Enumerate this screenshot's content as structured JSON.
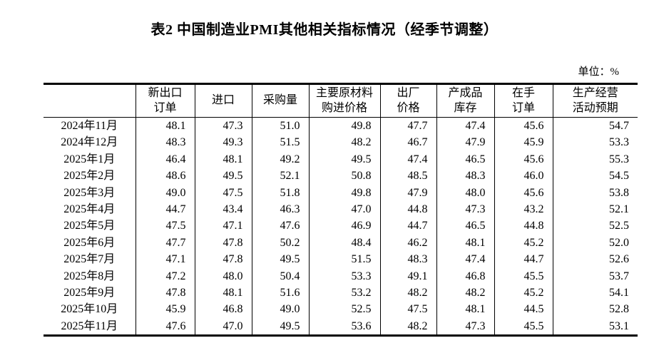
{
  "title": "表2 中国制造业PMI其他相关指标情况（经季节调整）",
  "unit_label": "单位：%",
  "colors": {
    "text": "#000000",
    "border": "#000000",
    "background": "#ffffff"
  },
  "table": {
    "columns": [
      "",
      "新出口\n订单",
      "进口",
      "采购量",
      "主要原材料\n购进价格",
      "出厂\n价格",
      "产成品\n库存",
      "在手\n订单",
      "生产经营\n活动预期"
    ],
    "rows": [
      {
        "label": "2024年11月",
        "values": [
          "48.1",
          "47.3",
          "51.0",
          "49.8",
          "47.7",
          "47.4",
          "45.6",
          "54.7"
        ]
      },
      {
        "label": "2024年12月",
        "values": [
          "48.3",
          "49.3",
          "51.5",
          "48.2",
          "46.7",
          "47.9",
          "45.9",
          "53.3"
        ]
      },
      {
        "label": "2025年1月",
        "values": [
          "46.4",
          "48.1",
          "49.2",
          "49.5",
          "47.4",
          "46.5",
          "45.6",
          "55.3"
        ]
      },
      {
        "label": "2025年2月",
        "values": [
          "48.6",
          "49.5",
          "52.1",
          "50.8",
          "48.5",
          "48.3",
          "46.0",
          "54.5"
        ]
      },
      {
        "label": "2025年3月",
        "values": [
          "49.0",
          "47.5",
          "51.8",
          "49.8",
          "47.9",
          "48.0",
          "45.6",
          "53.8"
        ]
      },
      {
        "label": "2025年4月",
        "values": [
          "44.7",
          "43.4",
          "46.3",
          "47.0",
          "44.8",
          "47.3",
          "43.2",
          "52.1"
        ]
      },
      {
        "label": "2025年5月",
        "values": [
          "47.5",
          "47.1",
          "47.6",
          "46.9",
          "44.7",
          "46.5",
          "44.8",
          "52.5"
        ]
      },
      {
        "label": "2025年6月",
        "values": [
          "47.7",
          "47.8",
          "50.2",
          "48.4",
          "46.2",
          "48.1",
          "45.2",
          "52.0"
        ]
      },
      {
        "label": "2025年7月",
        "values": [
          "47.1",
          "47.8",
          "49.5",
          "51.5",
          "48.3",
          "47.4",
          "44.7",
          "52.6"
        ]
      },
      {
        "label": "2025年8月",
        "values": [
          "47.2",
          "48.0",
          "50.4",
          "53.3",
          "49.1",
          "46.8",
          "45.5",
          "53.7"
        ]
      },
      {
        "label": "2025年9月",
        "values": [
          "47.8",
          "48.1",
          "51.6",
          "53.2",
          "48.2",
          "48.2",
          "45.2",
          "54.1"
        ]
      },
      {
        "label": "2025年10月",
        "values": [
          "45.9",
          "46.8",
          "49.0",
          "52.5",
          "47.5",
          "48.1",
          "44.5",
          "52.8"
        ]
      },
      {
        "label": "2025年11月",
        "values": [
          "47.6",
          "47.0",
          "49.5",
          "53.6",
          "48.2",
          "47.3",
          "45.5",
          "53.1"
        ]
      }
    ]
  }
}
